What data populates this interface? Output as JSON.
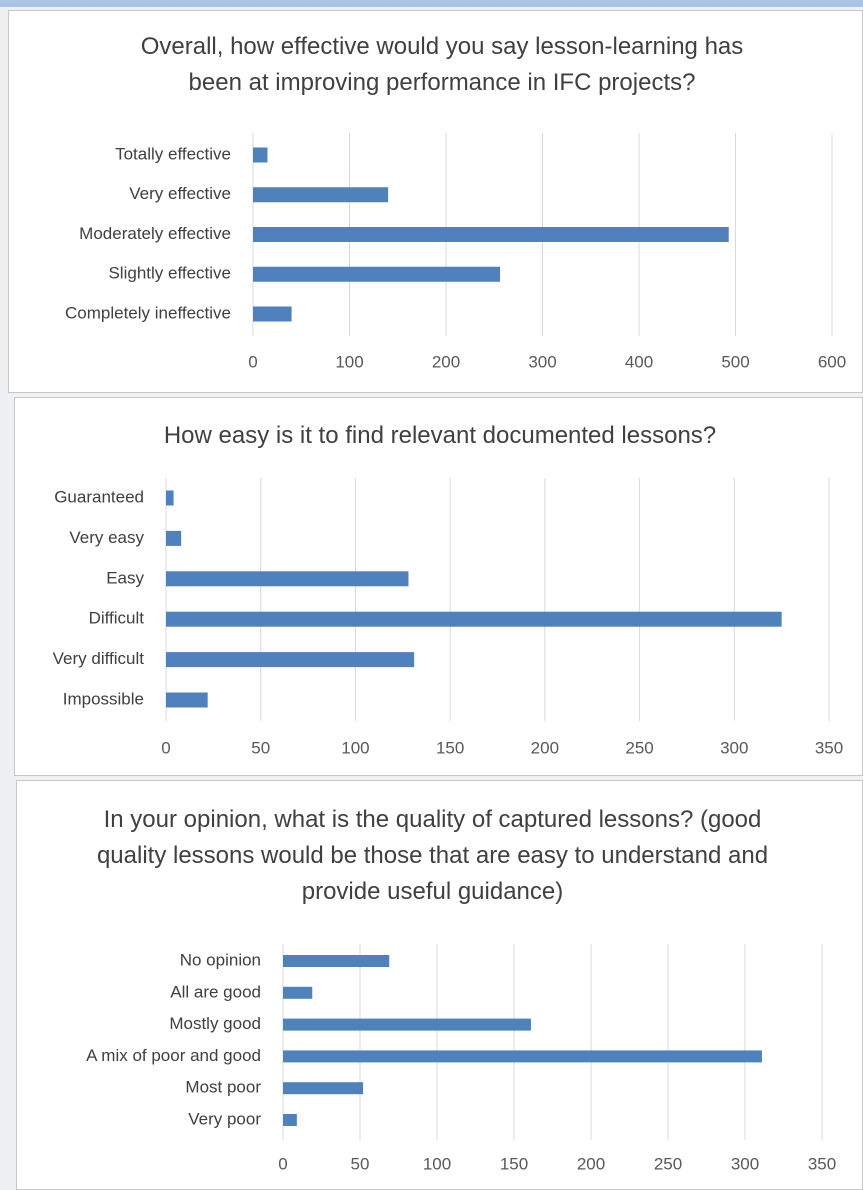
{
  "chart_data": [
    {
      "type": "bar",
      "orientation": "horizontal",
      "title": "Overall, how effective would you say lesson-learning has been at improving performance in IFC projects?",
      "categories": [
        "Totally effective",
        "Very effective",
        "Moderately effective",
        "Slightly effective",
        "Completely ineffective"
      ],
      "values": [
        15,
        140,
        493,
        256,
        40
      ],
      "color": "#4f81bd",
      "xlim": [
        0,
        600
      ],
      "xticks": [
        0,
        100,
        200,
        300,
        400,
        500,
        600
      ],
      "grid": true
    },
    {
      "type": "bar",
      "orientation": "horizontal",
      "title": "How easy is it to find relevant documented lessons?",
      "categories": [
        "Guaranteed",
        "Very easy",
        "Easy",
        "Difficult",
        "Very difficult",
        "Impossible"
      ],
      "values": [
        4,
        8,
        128,
        325,
        131,
        22
      ],
      "color": "#4f81bd",
      "xlim": [
        0,
        350
      ],
      "xticks": [
        0,
        50,
        100,
        150,
        200,
        250,
        300,
        350
      ],
      "grid": true
    },
    {
      "type": "bar",
      "orientation": "horizontal",
      "title": "In your opinion, what is the quality of captured lessons? (good quality lessons would be those that are easy to understand and provide useful guidance)",
      "categories": [
        "No opinion",
        "All are good",
        "Mostly good",
        "A mix of poor and good",
        "Most poor",
        "Very poor"
      ],
      "values": [
        69,
        19,
        161,
        311,
        52,
        9
      ],
      "color": "#4f81bd",
      "xlim": [
        0,
        350
      ],
      "xticks": [
        0,
        50,
        100,
        150,
        200,
        250,
        300,
        350
      ],
      "grid": true
    }
  ]
}
